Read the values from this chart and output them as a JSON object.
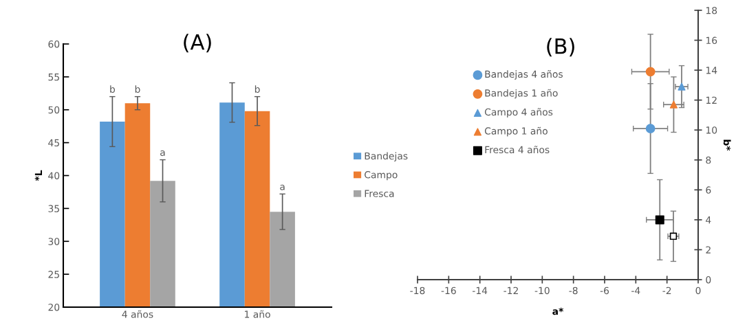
{
  "chart_data": [
    {
      "type": "bar",
      "title": "(A)",
      "ylabel": "*L",
      "categories": [
        "4 años",
        "1 año"
      ],
      "ylim": [
        20,
        60
      ],
      "yticks": [
        20,
        25,
        30,
        35,
        40,
        45,
        50,
        55,
        60
      ],
      "grid": false,
      "legend": "right",
      "series": [
        {
          "name": "Bandejas",
          "color": "#5b9bd5",
          "values": [
            48.2,
            51.1
          ],
          "errors": [
            3.8,
            3.0
          ],
          "value_labels": [
            "b",
            null
          ]
        },
        {
          "name": "Campo",
          "color": "#ed7d31",
          "values": [
            51.0,
            49.8
          ],
          "errors": [
            1.0,
            2.2
          ],
          "value_labels": [
            "b",
            "b"
          ]
        },
        {
          "name": "Fresca",
          "color": "#a5a5a5",
          "values": [
            39.2,
            34.5
          ],
          "errors": [
            3.2,
            2.7
          ],
          "value_labels": [
            "a",
            "a"
          ]
        }
      ]
    },
    {
      "type": "scatter",
      "title": "(B)",
      "xlabel": "a*",
      "ylabel": "b*",
      "xlim": [
        -18,
        0
      ],
      "ylim": [
        0,
        18
      ],
      "xticks": [
        -18,
        -16,
        -14,
        -12,
        -10,
        -8,
        -6,
        -4,
        -2,
        0
      ],
      "yticks": [
        0,
        2,
        4,
        6,
        8,
        10,
        12,
        14,
        16,
        18
      ],
      "grid": false,
      "legend": "left",
      "series": [
        {
          "name": "Bandejas 4 años",
          "color": "#5b9bd5",
          "marker": "circle",
          "x": [
            -3.06
          ],
          "values": [
            10.1
          ],
          "xerrors": [
            1.1
          ],
          "errors": [
            3.0
          ]
        },
        {
          "name": "Bandejas 1 año",
          "color": "#ed7d31",
          "marker": "circle",
          "x": [
            -3.06
          ],
          "values": [
            13.9
          ],
          "xerrors": [
            1.2
          ],
          "errors": [
            2.5
          ]
        },
        {
          "name": "Campo 4 años",
          "color": "#5b9bd5",
          "marker": "triangle",
          "x": [
            -1.06
          ],
          "values": [
            12.9
          ],
          "xerrors": [
            0.4
          ],
          "errors": [
            1.4
          ]
        },
        {
          "name": "Campo 1 año",
          "color": "#ed7d31",
          "marker": "triangle",
          "x": [
            -1.57
          ],
          "values": [
            11.7
          ],
          "xerrors": [
            0.65
          ],
          "errors": [
            1.85
          ]
        },
        {
          "name": "Fresca 4 años",
          "color": "#000000",
          "marker": "square",
          "x": [
            -2.46
          ],
          "values": [
            4.0
          ],
          "xerrors": [
            0.86
          ],
          "errors": [
            2.68
          ]
        },
        {
          "color": "#000000",
          "marker": "square",
          "x": [
            -1.59
          ],
          "values": [
            2.9
          ],
          "xerrors": [
            0.35
          ],
          "errors": [
            1.68
          ]
        }
      ]
    }
  ]
}
